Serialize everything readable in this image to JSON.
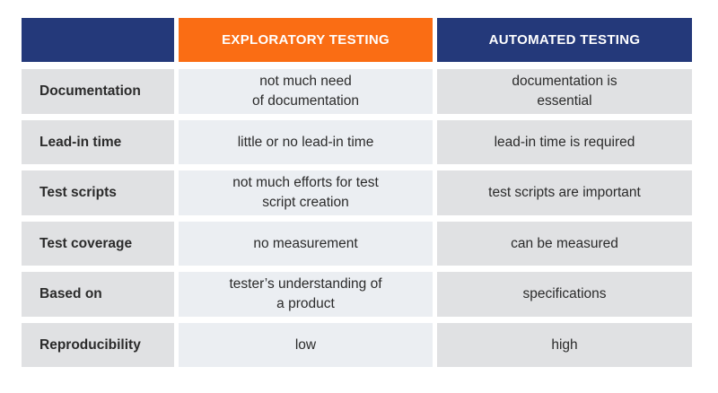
{
  "colors": {
    "header_corner": "#24397a",
    "header_exploratory": "#fa6d14",
    "header_automated": "#24397a",
    "row_label_bg": "#e0e1e3",
    "exploratory_bg": "#ebeef2",
    "automated_bg": "#e0e1e3"
  },
  "header": {
    "exploratory": "EXPLORATORY TESTING",
    "automated": "AUTOMATED TESTING"
  },
  "rows": [
    {
      "label": "Documentation",
      "exploratory": "not much need\nof documentation",
      "automated": "documentation is\nessential"
    },
    {
      "label": "Lead-in time",
      "exploratory": "little or no lead-in time",
      "automated": "lead-in time is required"
    },
    {
      "label": "Test scripts",
      "exploratory": "not much efforts for test\nscript creation",
      "automated": "test scripts are important"
    },
    {
      "label": "Test coverage",
      "exploratory": "no measurement",
      "automated": "can be measured"
    },
    {
      "label": "Based on",
      "exploratory": "tester’s understanding of\na product",
      "automated": "specifications"
    },
    {
      "label": "Reproducibility",
      "exploratory": "low",
      "automated": "high"
    }
  ]
}
